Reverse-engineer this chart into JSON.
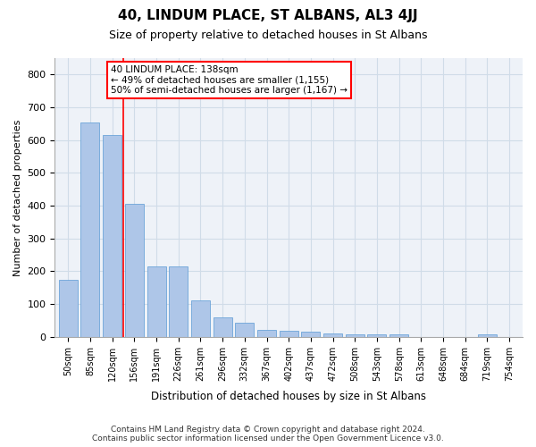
{
  "title": "40, LINDUM PLACE, ST ALBANS, AL3 4JJ",
  "subtitle": "Size of property relative to detached houses in St Albans",
  "xlabel": "Distribution of detached houses by size in St Albans",
  "ylabel": "Number of detached properties",
  "footer_line1": "Contains HM Land Registry data © Crown copyright and database right 2024.",
  "footer_line2": "Contains public sector information licensed under the Open Government Licence v3.0.",
  "categories": [
    "50sqm",
    "85sqm",
    "120sqm",
    "156sqm",
    "191sqm",
    "226sqm",
    "261sqm",
    "296sqm",
    "332sqm",
    "367sqm",
    "402sqm",
    "437sqm",
    "472sqm",
    "508sqm",
    "543sqm",
    "578sqm",
    "613sqm",
    "648sqm",
    "684sqm",
    "719sqm",
    "754sqm"
  ],
  "values": [
    175,
    655,
    615,
    405,
    215,
    215,
    110,
    60,
    43,
    20,
    18,
    15,
    10,
    8,
    8,
    8,
    0,
    0,
    0,
    8,
    0
  ],
  "bar_color": "#aec6e8",
  "bar_edge_color": "#5a9ad4",
  "grid_color": "#d0dce8",
  "bg_color": "#eef2f8",
  "annotation_line1": "40 LINDUM PLACE: 138sqm",
  "annotation_line2": "← 49% of detached houses are smaller (1,155)",
  "annotation_line3": "50% of semi-detached houses are larger (1,167) →",
  "vline_x": 2.5,
  "ylim": [
    0,
    850
  ],
  "yticks": [
    0,
    100,
    200,
    300,
    400,
    500,
    600,
    700,
    800
  ]
}
